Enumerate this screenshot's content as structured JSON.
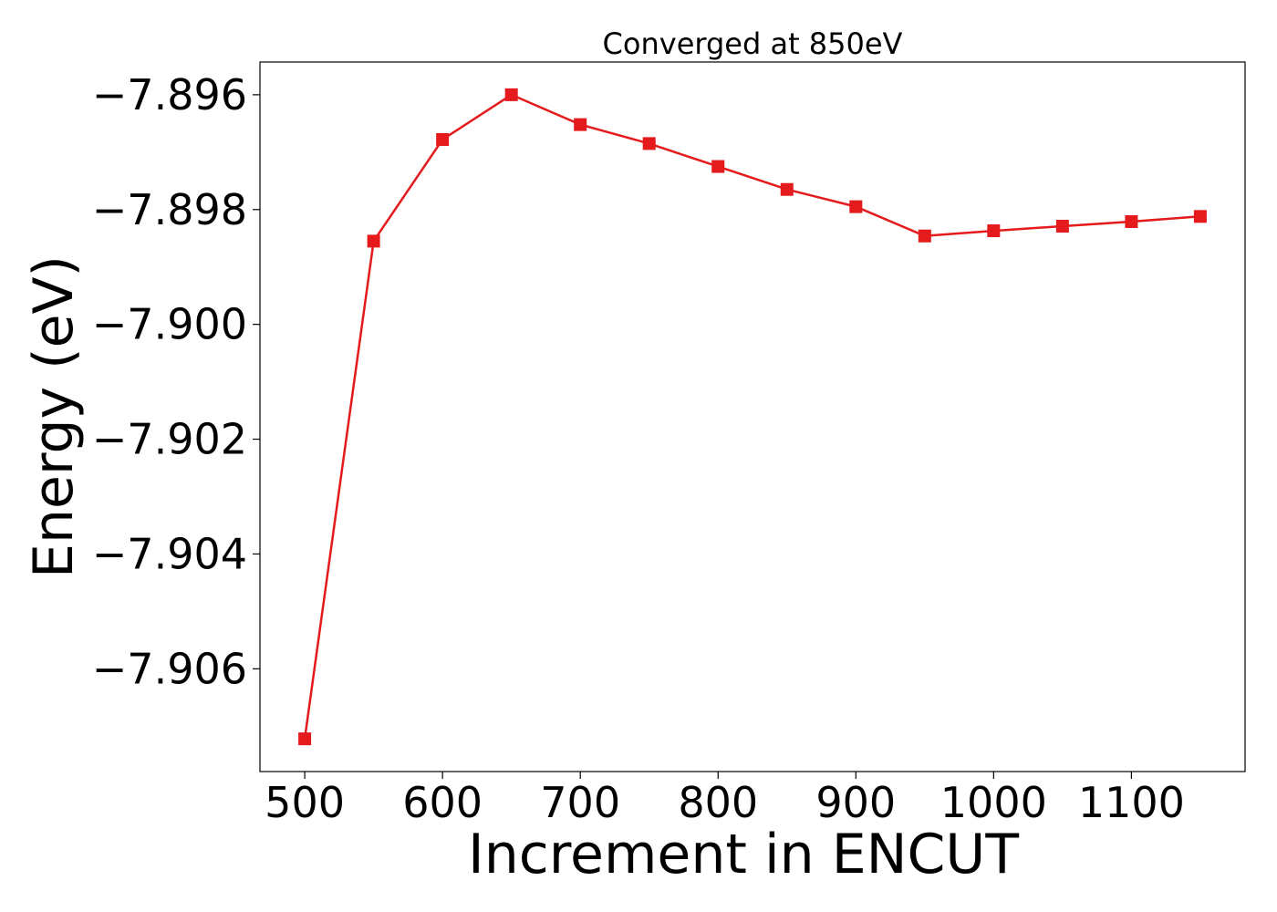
{
  "chart_data": {
    "type": "line",
    "title": "Converged at 850eV",
    "xlabel": "Increment in ENCUT",
    "ylabel": "Energy (eV)",
    "x": [
      500,
      550,
      600,
      650,
      700,
      750,
      800,
      850,
      900,
      950,
      1000,
      1050,
      1100,
      1150
    ],
    "series": [
      {
        "values": [
          -7.90722,
          -7.89855,
          -7.89678,
          -7.896,
          -7.89652,
          -7.89685,
          -7.89725,
          -7.89765,
          -7.89795,
          -7.89846,
          -7.89837,
          -7.89829,
          -7.89821,
          -7.89812
        ],
        "color": "#e41a1c",
        "marker": "square"
      }
    ],
    "xticks": [
      500,
      600,
      700,
      800,
      900,
      1000,
      1100
    ],
    "xtick_labels": [
      "500",
      "600",
      "700",
      "800",
      "900",
      "1000",
      "1100"
    ],
    "yticks": [
      -7.896,
      -7.898,
      -7.9,
      -7.902,
      -7.904,
      -7.906
    ],
    "ytick_labels": [
      "−7.896",
      "−7.898",
      "−7.900",
      "−7.902",
      "−7.904",
      "−7.906"
    ],
    "xlim": [
      467.5,
      1182.5
    ],
    "ylim": [
      -7.90779,
      -7.89543
    ],
    "grid": false,
    "legend": "none"
  }
}
